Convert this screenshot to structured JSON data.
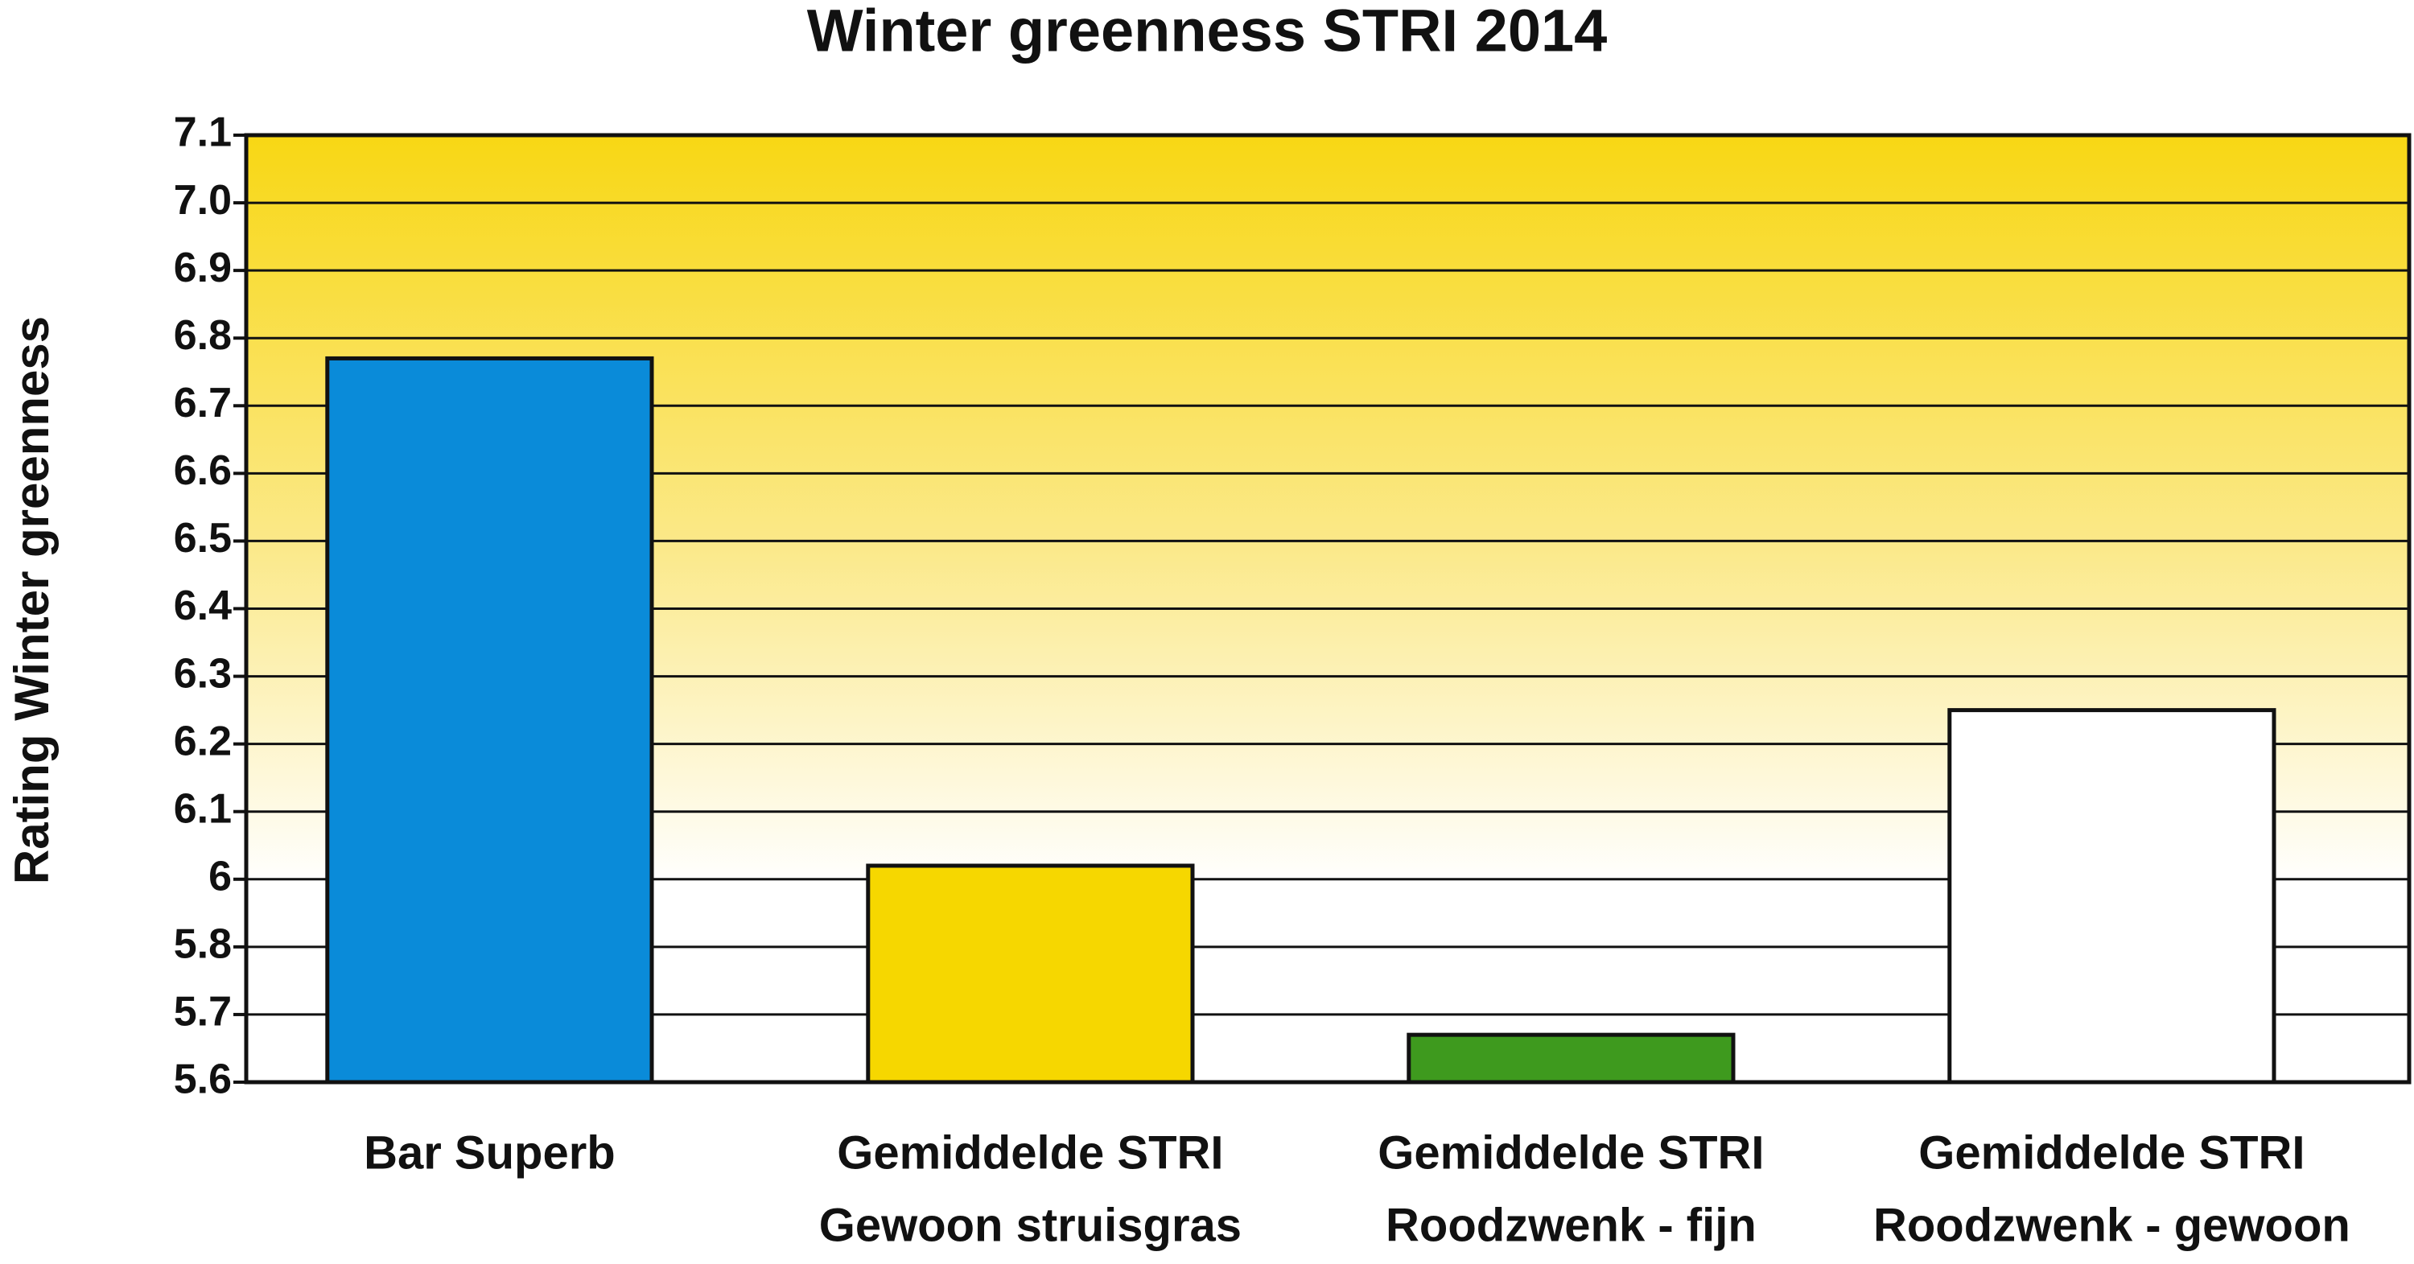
{
  "chart_data": {
    "type": "bar",
    "title": "Winter greenness STRI 2014",
    "y_label": "Rating Winter greenness",
    "categories": [
      [
        "Bar Superb"
      ],
      [
        "Gemiddelde STRI",
        "Gewoon struisgras"
      ],
      [
        "Gemiddelde STRI",
        "Roodzwenk - fijn"
      ],
      [
        "Gemiddelde STRI",
        "Roodzwenk - gewoon"
      ]
    ],
    "values": [
      6.77,
      6.02,
      5.67,
      6.25
    ],
    "colors": [
      "#0a8bd9",
      "#f6d700",
      "#3e9a1e",
      "#ffffff"
    ],
    "ylim": [
      5.6,
      7.1
    ],
    "yticks": [
      5.6,
      5.7,
      5.8,
      6.0,
      6.1,
      6.2,
      6.3,
      6.4,
      6.5,
      6.6,
      6.7,
      6.8,
      6.9,
      {
        "value": 7.0,
        "label": "7.0"
      },
      7.1
    ],
    "grid": true
  }
}
